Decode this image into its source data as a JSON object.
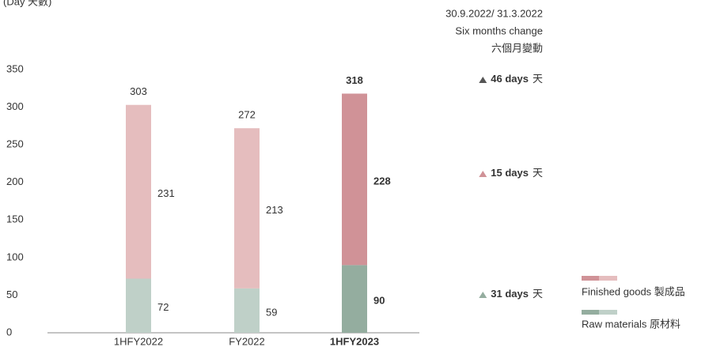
{
  "chart_data": {
    "type": "stacked_bar",
    "y_label": "(Day 天數)",
    "categories": [
      "1HFY2022",
      "FY2022",
      "1HFY2023"
    ],
    "highlight": 2,
    "series": [
      {
        "name": "Raw materials 原材料",
        "values": [
          72,
          59,
          90
        ],
        "colors": [
          "#bfd0c8",
          "#bfd0c8",
          "#94ad9f"
        ],
        "label_color": "#94ad9f",
        "change": {
          "value": 31,
          "label": "31 days",
          "suffix": "天"
        }
      },
      {
        "name": "Finished goods 製成品",
        "values": [
          231,
          213,
          228
        ],
        "colors": [
          "#e5bdbe",
          "#e5bdbe",
          "#d09297"
        ],
        "label_color": "#d09297",
        "change": {
          "value": 15,
          "label": "15 days",
          "suffix": "天"
        }
      }
    ],
    "totals": [
      303,
      272,
      318
    ],
    "total_change": {
      "value": 46,
      "label": "46 days",
      "suffix": "天"
    },
    "change_header": [
      "30.9.2022/ 31.3.2022",
      "Six months change",
      "六個月變動"
    ],
    "ylim": [
      0,
      350
    ],
    "yticks": [
      0,
      50,
      100,
      150,
      200,
      250,
      300,
      350
    ]
  }
}
